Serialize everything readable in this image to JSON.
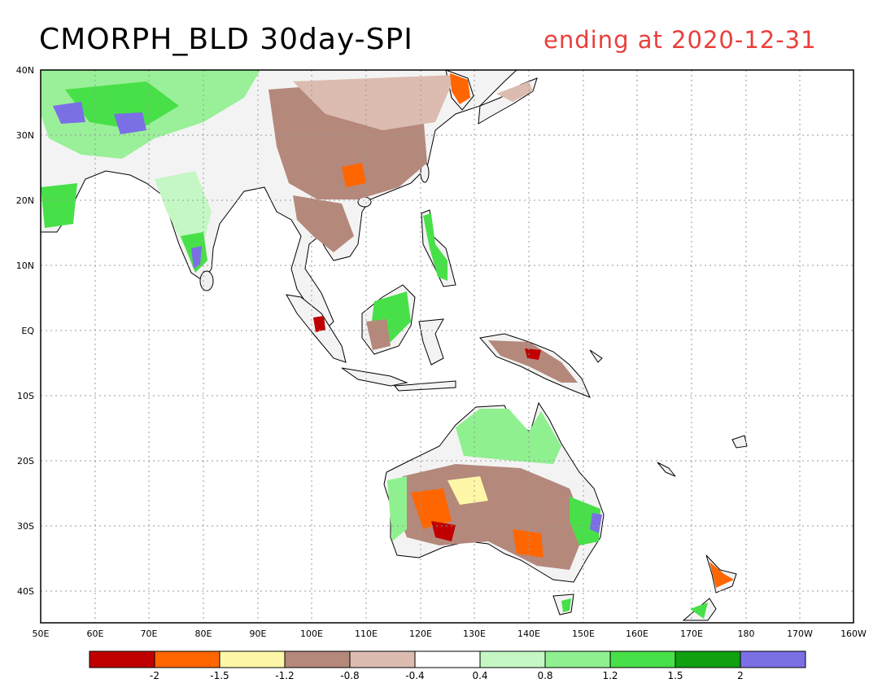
{
  "title": "CMORPH_BLD 30day-SPI",
  "subtitle": "ending at 2020-12-31",
  "lon_ticks": [
    "50E",
    "60E",
    "70E",
    "80E",
    "90E",
    "100E",
    "110E",
    "120E",
    "130E",
    "140E",
    "150E",
    "160E",
    "170E",
    "180",
    "170W",
    "160W"
  ],
  "lat_ticks": [
    "40N",
    "30N",
    "20N",
    "10N",
    "EQ",
    "10S",
    "20S",
    "30S",
    "40S"
  ],
  "colorbar": {
    "colors": [
      "#c00000",
      "#ff6600",
      "#fff7a8",
      "#b5887c",
      "#dcbcb0",
      "#ffffff",
      "#c4f7c4",
      "#8ff08f",
      "#48e048",
      "#10a010",
      "#7b6fe6"
    ],
    "labels": [
      "-2",
      "-1.5",
      "-1.2",
      "-0.8",
      "-0.4",
      "0.4",
      "0.8",
      "1.2",
      "1.5",
      "2"
    ]
  }
}
